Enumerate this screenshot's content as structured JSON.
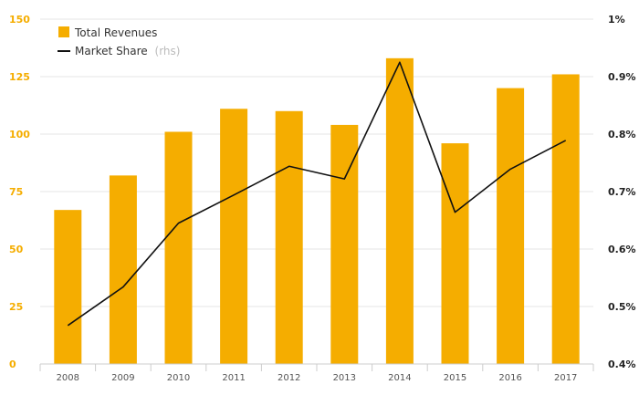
{
  "chart_data": {
    "type": "bar",
    "categories": [
      "2008",
      "2009",
      "2010",
      "2011",
      "2012",
      "2013",
      "2014",
      "2015",
      "2016",
      "2017"
    ],
    "series": [
      {
        "name": "Total Revenues",
        "type": "bar",
        "axis": "left",
        "values": [
          67,
          82,
          101,
          111,
          110,
          104,
          133,
          96,
          120,
          126
        ]
      },
      {
        "name": "Market Share",
        "name_suffix": "(rhs)",
        "type": "line",
        "axis": "right",
        "values": [
          0.467,
          0.534,
          0.645,
          0.694,
          0.744,
          0.722,
          0.925,
          0.664,
          0.739,
          0.789
        ]
      }
    ],
    "left_axis": {
      "ylim": [
        0,
        150
      ],
      "ticks": [
        0,
        25,
        50,
        75,
        100,
        125,
        150
      ],
      "tick_labels": [
        "0",
        "25",
        "50",
        "75",
        "100",
        "125",
        "150"
      ]
    },
    "right_axis": {
      "ylim": [
        0.4,
        1.0
      ],
      "ticks": [
        0.4,
        0.5,
        0.6,
        0.7,
        0.8,
        0.9,
        1.0
      ],
      "tick_labels": [
        "0.4%",
        "0.5%",
        "0.6%",
        "0.7%",
        "0.8%",
        "0.9%",
        "1%"
      ]
    },
    "title": "",
    "xlabel": "",
    "ylabel": "",
    "grid": true,
    "legend_position": "top-left",
    "colors": {
      "bar": "#f5ad00",
      "line": "#111111",
      "grid": "#e6e6e6",
      "left_ticks": "#f5ad00",
      "right_ticks": "#222222"
    }
  }
}
